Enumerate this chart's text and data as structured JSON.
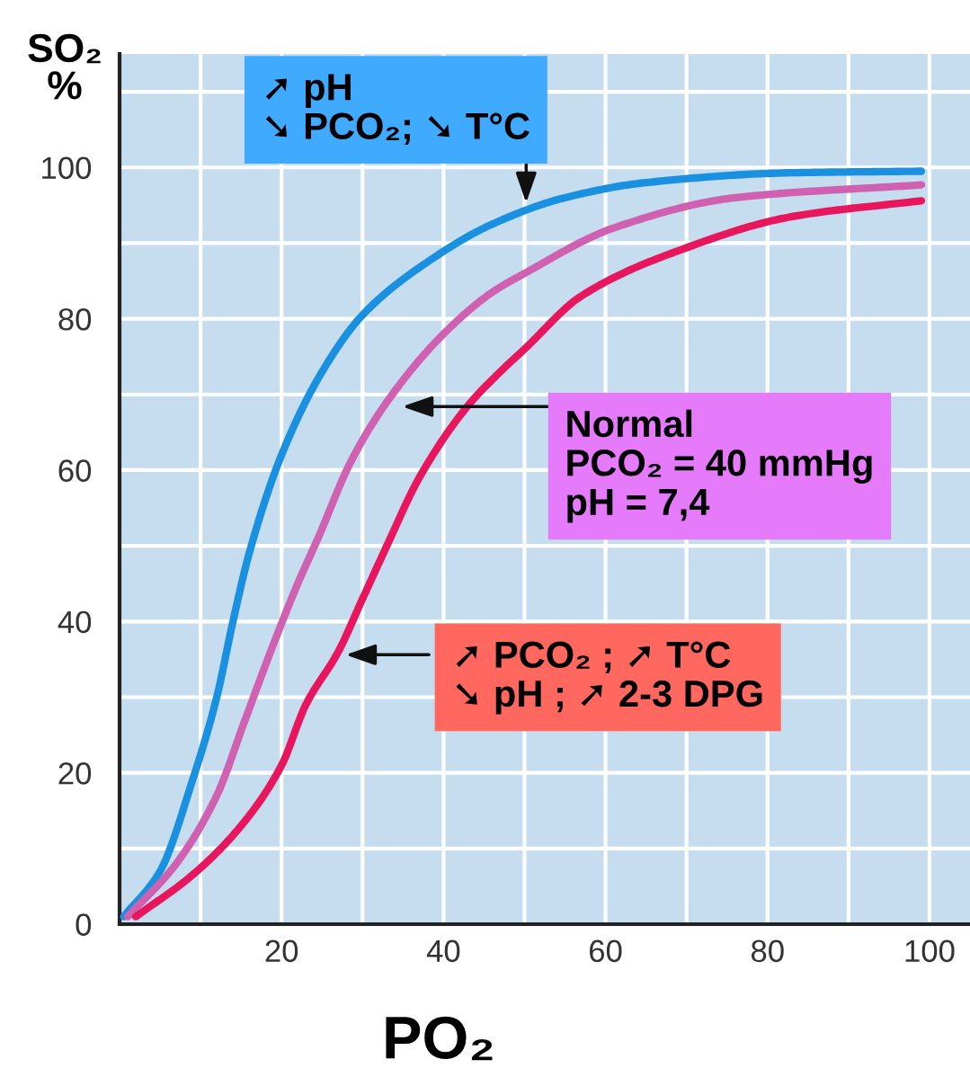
{
  "chart_data": {
    "type": "line",
    "xlabel": "PO₂",
    "ylabel": "SO₂\n%",
    "xlim": [
      0,
      105
    ],
    "ylim": [
      0,
      115
    ],
    "xticks": [
      {
        "value": 10,
        "label": null
      },
      20,
      {
        "value": 30,
        "label": null
      },
      40,
      {
        "value": 50,
        "label": null
      },
      60,
      {
        "value": 70,
        "label": null
      },
      80,
      {
        "value": 90,
        "label": null
      },
      100
    ],
    "yticks": [
      0,
      {
        "value": 10,
        "label": null
      },
      20,
      {
        "value": 30,
        "label": null
      },
      40,
      {
        "value": 50,
        "label": null
      },
      60,
      {
        "value": 70,
        "label": null
      },
      80,
      {
        "value": 90,
        "label": null
      },
      100,
      {
        "value": 110,
        "label": null
      }
    ],
    "grid": true,
    "legend": false,
    "marker": "none",
    "line_style": "solid",
    "series": [
      {
        "color": "#1a90e0",
        "x": [
          0.5,
          5,
          9,
          12,
          14,
          16,
          20,
          25,
          30,
          38,
          46,
          55,
          65,
          83,
          99
        ],
        "values": [
          1,
          7,
          19,
          30,
          40,
          49,
          62,
          73,
          80.5,
          87.5,
          92.5,
          96,
          98,
          99.3,
          99.5
        ]
      },
      {
        "color": "#d060b0",
        "x": [
          1,
          7,
          12,
          15.5,
          19,
          22,
          24.5,
          28.5,
          33,
          40,
          46,
          50,
          61,
          76,
          99
        ],
        "values": [
          1,
          8,
          17,
          27,
          37,
          45,
          51,
          61,
          69,
          78,
          83.5,
          86,
          92,
          96,
          97.7
        ]
      },
      {
        "color": "#e8175d",
        "x": [
          2,
          9,
          15,
          20,
          23,
          27,
          30,
          33,
          37,
          43,
          47,
          50,
          57,
          69,
          83,
          99
        ],
        "values": [
          1,
          6.5,
          13,
          21,
          29,
          36,
          43,
          50,
          59,
          68.5,
          73,
          76,
          83,
          89,
          93.5,
          95.6
        ]
      }
    ],
    "annotations": [
      "➚ pH\n➘ PCO₂; ➘ T°C",
      "Normal\nPCO₂ = 40 mmHg\npH = 7,4",
      "➚ PCO₂ ; ➚ T°C\n➘ pH ; ➚ 2-3 DPG"
    ]
  }
}
